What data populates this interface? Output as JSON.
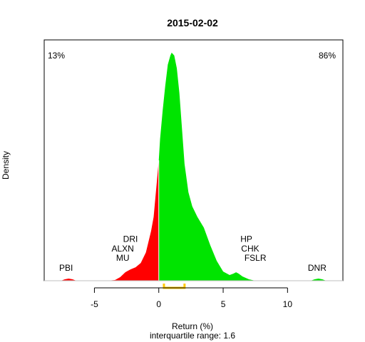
{
  "chart_data": {
    "type": "area",
    "title": "2015-02-02",
    "xlabel": "Return (%)",
    "ylabel": "Density",
    "subtitle": "interquartile range: 1.6",
    "xlim": [
      -8.9,
      14.3
    ],
    "ylim": [
      0,
      0.34
    ],
    "xticks": [
      -5,
      0,
      5,
      10
    ],
    "iqr": [
      0.4,
      2.0
    ],
    "colors": {
      "negative": "#ff0000",
      "positive": "#00e400",
      "iqr": "#ffc800",
      "baseline": "#bfbfbf"
    },
    "share_negative": {
      "label": "13%",
      "color": "#ff0000"
    },
    "share_positive": {
      "label": "86%",
      "color": "#008000"
    },
    "density": {
      "x": [
        -7.6,
        -7.3,
        -7.0,
        -6.7,
        -6.4,
        -6.0,
        -5.0,
        -4.0,
        -3.4,
        -3.0,
        -2.6,
        -2.2,
        -1.8,
        -1.4,
        -1.0,
        -0.6,
        -0.4,
        -0.2,
        -0.05,
        0.0,
        0.1,
        0.3,
        0.5,
        0.7,
        0.9,
        1.0,
        1.2,
        1.4,
        1.6,
        1.8,
        2.0,
        2.3,
        2.6,
        3.0,
        3.5,
        4.0,
        4.5,
        5.0,
        5.5,
        5.8,
        6.0,
        6.2,
        6.5,
        7.0,
        7.5,
        8.0,
        9.0,
        10.0,
        11.0,
        11.8,
        12.1,
        12.4,
        12.7,
        13.0,
        13.5
      ],
      "y": [
        0,
        0.002,
        0.003,
        0.002,
        0.0,
        0,
        0,
        0,
        0.001,
        0.005,
        0.012,
        0.016,
        0.019,
        0.025,
        0.04,
        0.07,
        0.09,
        0.13,
        0.16,
        0.17,
        0.2,
        0.24,
        0.275,
        0.305,
        0.318,
        0.322,
        0.318,
        0.3,
        0.265,
        0.215,
        0.165,
        0.125,
        0.105,
        0.09,
        0.075,
        0.05,
        0.028,
        0.013,
        0.008,
        0.01,
        0.012,
        0.01,
        0.006,
        0.002,
        0.0,
        0,
        0,
        0,
        0,
        0.0,
        0.002,
        0.003,
        0.002,
        0,
        0
      ]
    },
    "annotations": [
      {
        "label": "DRI",
        "x": -2.2,
        "y": 0.055
      },
      {
        "label": "ALXN",
        "x": -2.8,
        "y": 0.041
      },
      {
        "label": "MU",
        "x": -2.8,
        "y": 0.028
      },
      {
        "label": "PBI",
        "x": -7.2,
        "y": 0.014
      },
      {
        "label": "HP",
        "x": 6.8,
        "y": 0.055
      },
      {
        "label": "CHK",
        "x": 7.1,
        "y": 0.041
      },
      {
        "label": "FSLR",
        "x": 7.5,
        "y": 0.028
      },
      {
        "label": "DNR",
        "x": 12.3,
        "y": 0.014
      }
    ]
  }
}
